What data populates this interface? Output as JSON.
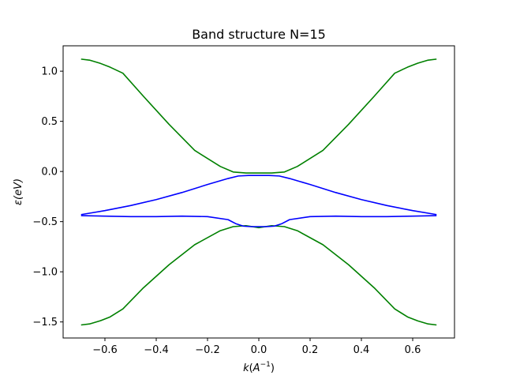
{
  "chart_data": {
    "type": "line",
    "title": "Band structure N=15",
    "xlabel": "k(A^-1)",
    "ylabel": "ε(eV)",
    "xlim": [
      -0.763,
      0.763
    ],
    "ylim": [
      -1.66,
      1.253
    ],
    "xticks": [
      -0.6,
      -0.4,
      -0.2,
      0.0,
      0.2,
      0.4,
      0.6
    ],
    "xtick_labels": [
      "−0.6",
      "−0.4",
      "−0.2",
      "0.0",
      "0.2",
      "0.4",
      "0.6"
    ],
    "yticks": [
      -1.5,
      -1.0,
      -0.5,
      0.0,
      0.5,
      1.0
    ],
    "ytick_labels": [
      "−1.5",
      "−1.0",
      "−0.5",
      "0.0",
      "0.5",
      "1.0"
    ],
    "grid": false,
    "legend": "none",
    "series": [
      {
        "color": "#008000",
        "x": [
          -0.693,
          -0.66,
          -0.62,
          -0.58,
          -0.53,
          -0.45,
          -0.35,
          -0.25,
          -0.15,
          -0.1,
          -0.05,
          0.0,
          0.05,
          0.1,
          0.15,
          0.25,
          0.35,
          0.45,
          0.53,
          0.58,
          0.62,
          0.66,
          0.693
        ],
        "y": [
          1.12,
          1.11,
          1.08,
          1.04,
          0.98,
          0.75,
          0.47,
          0.21,
          0.05,
          -0.005,
          -0.015,
          -0.015,
          -0.015,
          -0.005,
          0.05,
          0.21,
          0.47,
          0.75,
          0.98,
          1.04,
          1.08,
          1.11,
          1.12
        ]
      },
      {
        "color": "#008000",
        "x": [
          -0.693,
          -0.66,
          -0.62,
          -0.58,
          -0.53,
          -0.45,
          -0.35,
          -0.25,
          -0.15,
          -0.1,
          -0.05,
          0.0,
          0.05,
          0.1,
          0.15,
          0.25,
          0.35,
          0.45,
          0.53,
          0.58,
          0.62,
          0.66,
          0.693
        ],
        "y": [
          -1.53,
          -1.52,
          -1.49,
          -1.45,
          -1.37,
          -1.16,
          -0.93,
          -0.73,
          -0.59,
          -0.55,
          -0.54,
          -0.56,
          -0.54,
          -0.55,
          -0.59,
          -0.73,
          -0.93,
          -1.16,
          -1.37,
          -1.45,
          -1.49,
          -1.52,
          -1.53
        ]
      },
      {
        "color": "#0000ff",
        "x": [
          -0.693,
          -0.6,
          -0.5,
          -0.4,
          -0.3,
          -0.2,
          -0.12,
          -0.08,
          -0.04,
          0.0,
          0.04,
          0.08,
          0.12,
          0.2,
          0.3,
          0.4,
          0.5,
          0.6,
          0.693
        ],
        "y": [
          -0.43,
          -0.39,
          -0.34,
          -0.28,
          -0.21,
          -0.13,
          -0.07,
          -0.045,
          -0.04,
          -0.04,
          -0.04,
          -0.045,
          -0.07,
          -0.13,
          -0.21,
          -0.28,
          -0.34,
          -0.39,
          -0.43
        ]
      },
      {
        "color": "#0000ff",
        "x": [
          -0.693,
          -0.6,
          -0.5,
          -0.4,
          -0.3,
          -0.2,
          -0.12,
          -0.09,
          -0.06,
          -0.03,
          0.0,
          0.03,
          0.06,
          0.09,
          0.12,
          0.2,
          0.3,
          0.4,
          0.5,
          0.6,
          0.693
        ],
        "y": [
          -0.44,
          -0.445,
          -0.45,
          -0.45,
          -0.445,
          -0.45,
          -0.48,
          -0.52,
          -0.545,
          -0.55,
          -0.55,
          -0.55,
          -0.545,
          -0.52,
          -0.48,
          -0.45,
          -0.445,
          -0.45,
          -0.45,
          -0.445,
          -0.44
        ]
      }
    ]
  }
}
